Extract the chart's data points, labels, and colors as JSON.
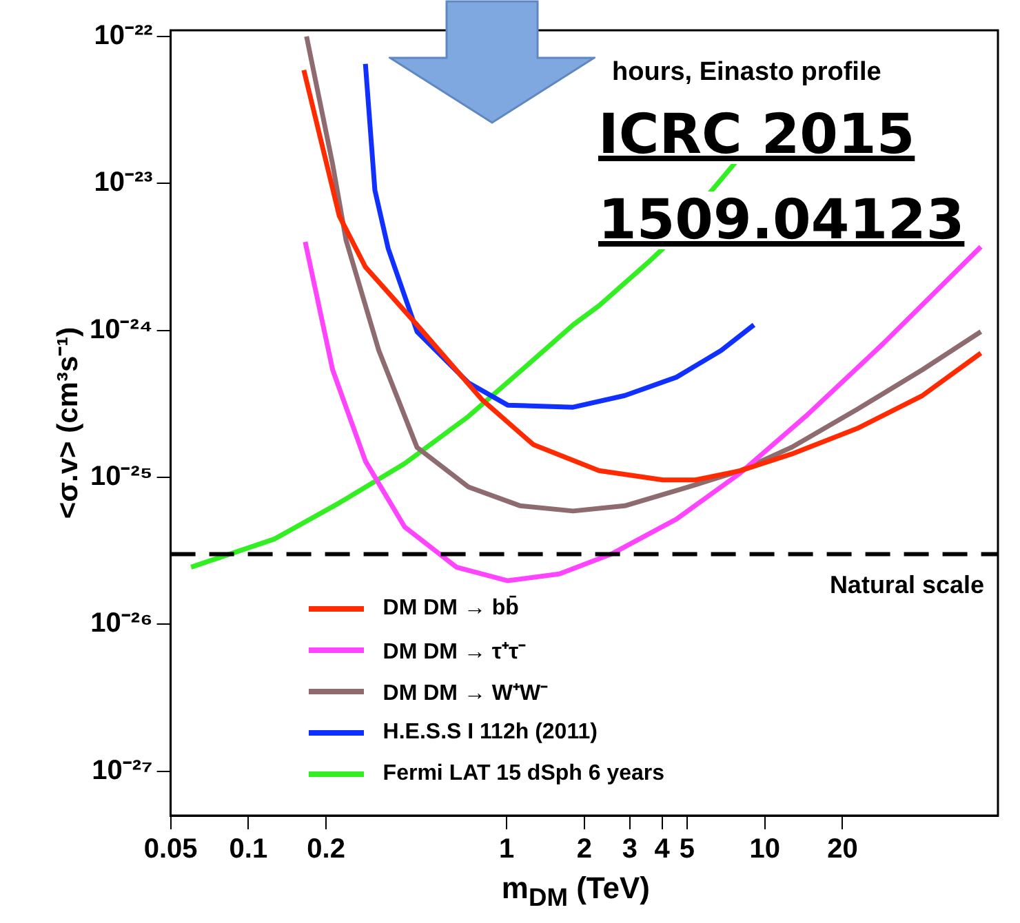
{
  "chart_data": {
    "type": "line",
    "title": "hours, Einasto profile",
    "xlabel": "m$_{DM}$ (TeV)",
    "ylabel": "<σ.v> (cm³s⁻¹)",
    "log": "xy",
    "grid": false,
    "legend": "bottom left",
    "xlim": [
      0.05,
      80
    ],
    "ylim": [
      5e-28,
      1.1e-22
    ],
    "xticks": [
      0.05,
      0.1,
      0.2,
      1,
      2,
      3,
      4,
      5,
      10,
      20
    ],
    "yticks": [
      {
        "value": 1e-27,
        "label": "10⁻²⁷"
      },
      {
        "value": 1e-26,
        "label": "10⁻²⁶"
      },
      {
        "value": 1e-25,
        "label": "10⁻²⁵"
      },
      {
        "value": 1e-24,
        "label": "10⁻²⁴"
      },
      {
        "value": 1e-23,
        "label": "10⁻²³"
      },
      {
        "value": 1e-22,
        "label": "10⁻²²"
      }
    ],
    "ref_lines": [
      {
        "axis": "y",
        "value": 3e-26,
        "label": "Natural scale",
        "color": "#000000",
        "line_style": "dashed"
      }
    ],
    "annotations": [
      "ICRC 2015",
      "1509.04123"
    ],
    "series": [
      {
        "name": "DM DM  → bb̄",
        "color": "#ff2a00",
        "x": [
          0.164,
          0.225,
          0.284,
          0.45,
          0.8,
          1.27,
          2.28,
          4.03,
          5.39,
          8.04,
          12.7,
          22.8,
          40.8,
          68.7
        ],
        "values": [
          5.9e-23,
          6e-24,
          2.7e-24,
          1.09e-24,
          3.4e-25,
          1.67e-25,
          1.11e-25,
          9.6e-26,
          9.6e-26,
          1.11e-25,
          1.44e-25,
          2.15e-25,
          3.6e-25,
          7e-25
        ]
      },
      {
        "name": "DM DM  → τ⁺τ⁻",
        "color": "#ff44ff",
        "x": [
          0.166,
          0.212,
          0.284,
          0.403,
          0.639,
          1.01,
          1.6,
          2.54,
          4.55,
          8.04,
          14.4,
          28.7,
          68.7
        ],
        "values": [
          4e-24,
          5.4e-25,
          1.29e-25,
          4.6e-26,
          2.45e-26,
          1.98e-26,
          2.2e-26,
          3e-26,
          5.2e-26,
          1.07e-25,
          2.6e-25,
          8.1e-25,
          3.7e-24
        ]
      },
      {
        "name": "DM DM  → W⁺W⁻",
        "color": "#8e6b6f",
        "x": [
          0.168,
          0.212,
          0.239,
          0.32,
          0.45,
          0.712,
          1.13,
          1.81,
          2.87,
          5.07,
          8.04,
          12.7,
          22.8,
          40.8,
          68.7
        ],
        "values": [
          1e-22,
          1.35e-23,
          4.1e-24,
          7.3e-25,
          1.6e-25,
          8.6e-26,
          6.4e-26,
          5.9e-26,
          6.4e-26,
          8.6e-26,
          1.11e-25,
          1.6e-25,
          2.9e-25,
          5.4e-25,
          9.8e-25
        ]
      },
      {
        "name": "H.E.S.S I 112h (2011)",
        "color": "#1030ff",
        "x": [
          0.284,
          0.309,
          0.348,
          0.45,
          0.712,
          1.01,
          1.81,
          2.87,
          4.55,
          6.78,
          9.08
        ],
        "values": [
          6.5e-23,
          9e-24,
          3.6e-24,
          9.8e-25,
          4.4e-25,
          3.1e-25,
          3e-25,
          3.6e-25,
          4.8e-25,
          7.3e-25,
          1.09e-24
        ]
      },
      {
        "name": "Fermi LAT 15 dSph 6 years",
        "color": "#33ee22",
        "x": [
          0.06,
          0.126,
          0.225,
          0.403,
          0.712,
          1.27,
          1.81,
          2.28,
          3.61,
          4.03,
          7.21,
          7.75
        ],
        "values": [
          2.45e-26,
          3.8e-26,
          6.7e-26,
          1.24e-25,
          2.6e-25,
          6.3e-25,
          1.09e-24,
          1.47e-24,
          3e-24,
          3.6e-24,
          1.21e-23,
          1.41e-23
        ]
      }
    ]
  }
}
